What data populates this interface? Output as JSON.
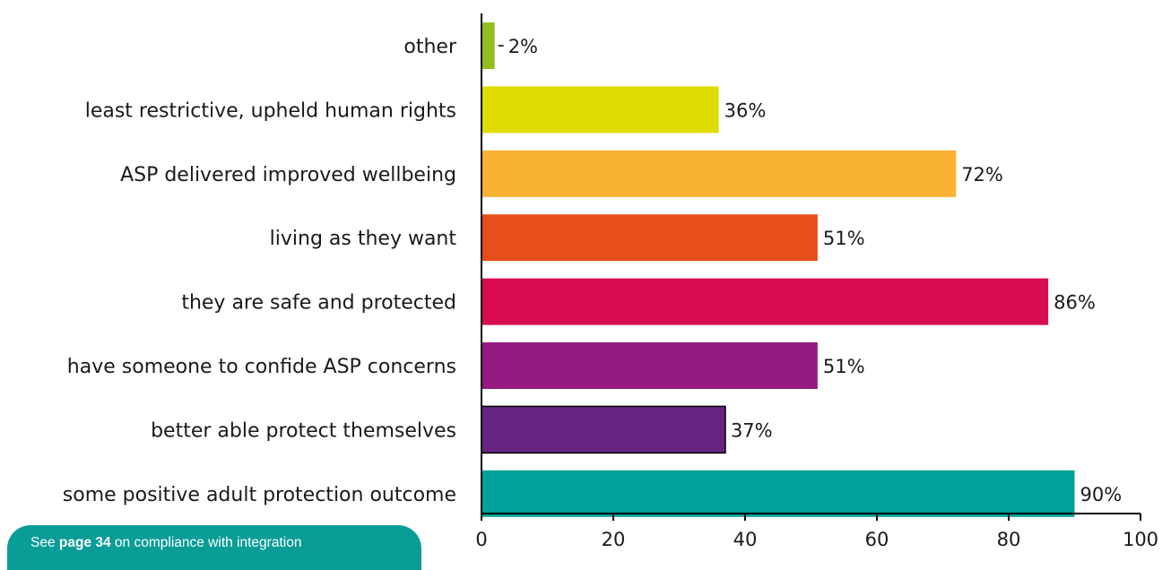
{
  "chart_data": {
    "type": "bar",
    "orientation": "horizontal",
    "categories": [
      "other",
      "least restrictive, upheld human rights",
      "ASP delivered improved wellbeing",
      "living as they want",
      "they are safe and protected",
      "have someone to confide ASP concerns",
      "better able protect themselves",
      "some positive adult protection outcome"
    ],
    "values": [
      2,
      36,
      72,
      51,
      86,
      51,
      37,
      90
    ],
    "value_labels": [
      "2%",
      "36%",
      "72%",
      "51%",
      "86%",
      "51%",
      "37%",
      "90%"
    ],
    "colors": [
      "#94bf21",
      "#dedc00",
      "#f8b133",
      "#e84e1b",
      "#d70c53",
      "#951b81",
      "#662483",
      "#00a19a"
    ],
    "xlim": [
      0,
      100
    ],
    "xticks": [
      0,
      20,
      40,
      60,
      80,
      100
    ],
    "title": "",
    "xlabel": "",
    "ylabel": "",
    "grid": false
  },
  "note": {
    "prefix": "See ",
    "link": "page 34",
    "suffix": " on compliance with integration"
  }
}
